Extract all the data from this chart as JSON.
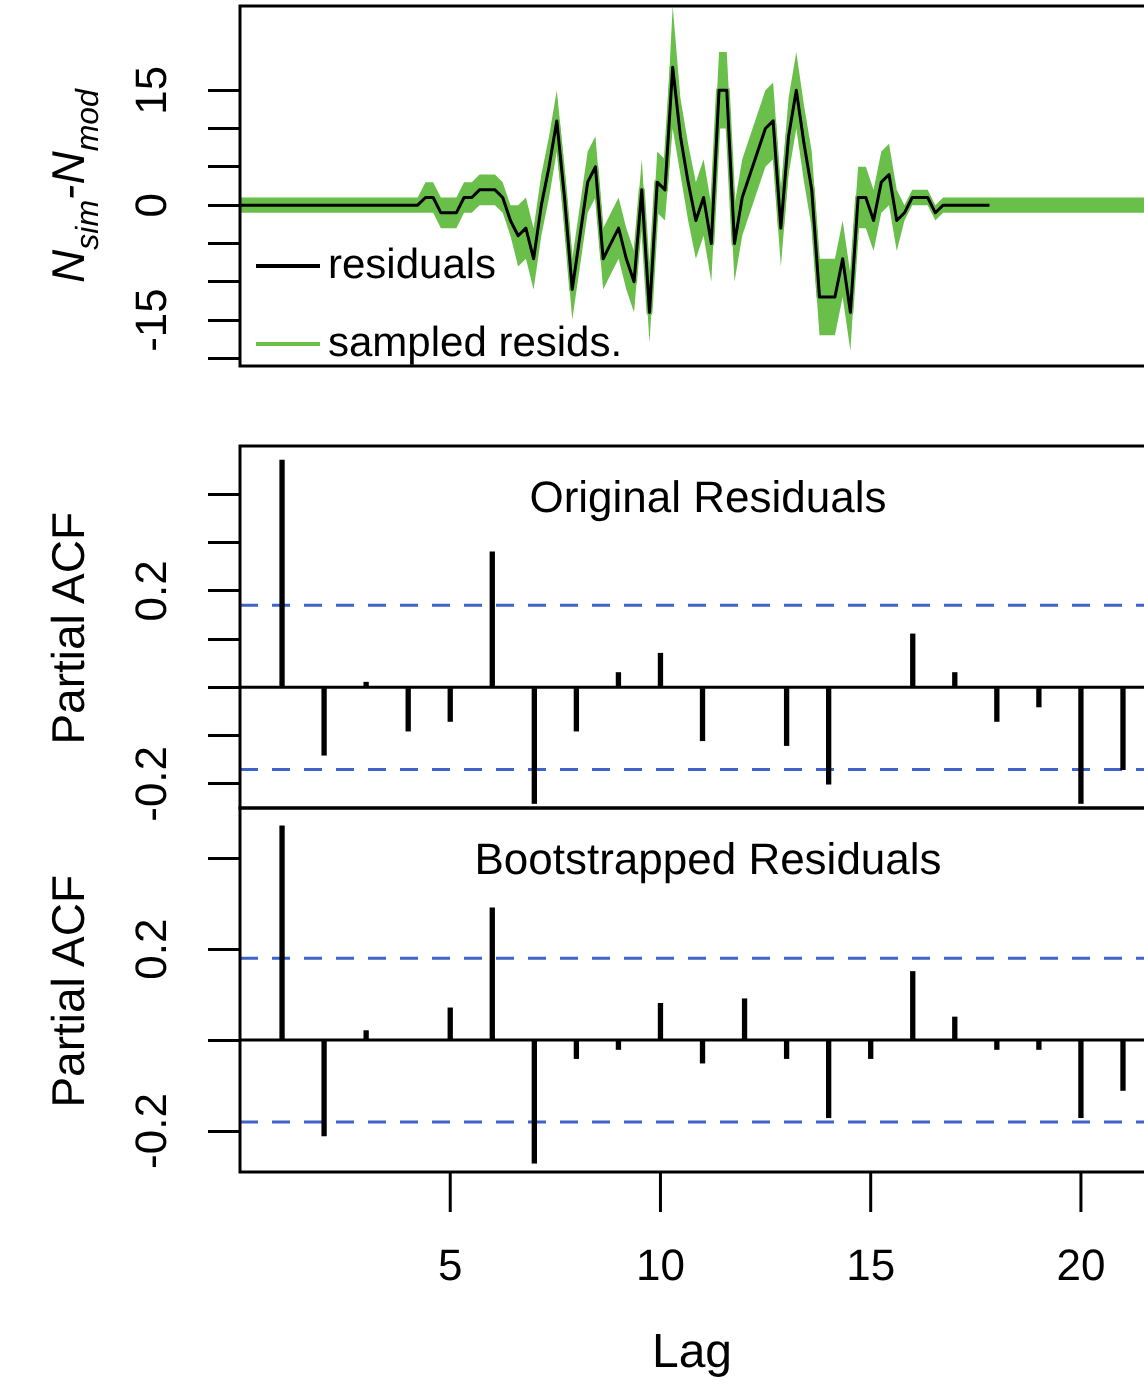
{
  "chart_data": [
    {
      "type": "line",
      "ylabel": "N$_{sim}$-N$_{mod}$",
      "categories": [
        null,
        null,
        null,
        null,
        null,
        null,
        null,
        null,
        null,
        null,
        null,
        null,
        null,
        null,
        null,
        null,
        null,
        null,
        null,
        null,
        null,
        null,
        null,
        null,
        null,
        null,
        null,
        null,
        null,
        null,
        null,
        null,
        null,
        null,
        null,
        null,
        null,
        null,
        null,
        null,
        null,
        null,
        null,
        null,
        null,
        null,
        null,
        null,
        null,
        null,
        null,
        null,
        null,
        null,
        null,
        null,
        null,
        null,
        null,
        null,
        null,
        null,
        null,
        null,
        null,
        null,
        null,
        null,
        null,
        null,
        null,
        null,
        null,
        null,
        null,
        null,
        null,
        null,
        null,
        null,
        null,
        null,
        null,
        null,
        null,
        null,
        null,
        null,
        null,
        null,
        null,
        null,
        null,
        null,
        null,
        null,
        null,
        null,
        null,
        null,
        null,
        null,
        null,
        null,
        null,
        null,
        null,
        null,
        null,
        null,
        null,
        null,
        null,
        null,
        null,
        null,
        null,
        null
      ],
      "series": [
        {
          "name": "residuals",
          "color": "#000000",
          "values": [
            0,
            0,
            0,
            0,
            0,
            0,
            0,
            0,
            0,
            0,
            0,
            0,
            0,
            0,
            0,
            0,
            0,
            0,
            0,
            0,
            0,
            0,
            0,
            0,
            1,
            1,
            -1,
            -1,
            -1,
            1,
            1,
            2,
            2,
            2,
            1,
            -2,
            -4,
            -3,
            -7,
            0,
            5,
            11,
            1,
            -11,
            -4,
            3,
            5,
            -7,
            -5,
            -3,
            -7,
            -10,
            2,
            -14,
            3,
            2,
            18,
            9,
            3,
            -2,
            1,
            -5,
            15,
            15,
            -5,
            1,
            4,
            7,
            10,
            11,
            -3,
            9,
            15,
            8,
            2,
            -12,
            -12,
            -12,
            -7,
            -14,
            1,
            1,
            -2,
            3,
            4,
            -2,
            -1,
            1,
            1,
            1,
            -1,
            0,
            0,
            0,
            0,
            0,
            0,
            0,
            null,
            null,
            null,
            null,
            null,
            null,
            null,
            null,
            null,
            null,
            null,
            null,
            null,
            null,
            null,
            null,
            null,
            null,
            null,
            null
          ]
        },
        {
          "name": "sampled resids.",
          "color": "#6abf4b",
          "values": [
            0,
            0,
            0,
            0,
            0,
            0,
            0,
            0,
            0,
            0,
            0,
            0,
            0,
            0,
            0,
            0,
            0,
            0,
            0,
            0,
            0,
            0,
            0,
            0,
            1,
            1,
            -1,
            -1,
            -1,
            1,
            1,
            2,
            2,
            2,
            1,
            -2,
            -4,
            -3,
            -7,
            0,
            5,
            11,
            1,
            -11,
            -4,
            3,
            5,
            -7,
            -5,
            -3,
            -7,
            -10,
            2,
            -14,
            3,
            2,
            18,
            9,
            3,
            -2,
            1,
            -5,
            15,
            15,
            -5,
            1,
            4,
            7,
            10,
            11,
            -3,
            9,
            15,
            8,
            2,
            -12,
            -12,
            -12,
            -7,
            -14,
            1,
            1,
            -2,
            3,
            4,
            -2,
            -1,
            1,
            1,
            1,
            -1,
            0,
            0,
            0,
            0,
            0,
            0,
            0,
            0,
            0,
            0,
            0,
            0,
            0,
            0,
            0,
            0,
            0,
            0,
            0,
            0,
            0,
            0,
            0,
            0,
            0,
            0,
            0
          ],
          "upper": [
            1,
            1,
            1,
            1,
            1,
            1,
            1,
            1,
            1,
            1,
            1,
            1,
            1,
            1,
            1,
            1,
            1,
            1,
            1,
            1,
            1,
            1,
            1,
            1,
            3,
            3,
            1,
            1,
            1,
            3,
            3,
            4,
            4,
            4,
            3,
            0,
            0,
            1,
            -3,
            4,
            9,
            15,
            5,
            -7,
            0,
            7,
            9,
            -3,
            -1,
            1,
            -3,
            -6,
            6,
            -10,
            7,
            6,
            26,
            14,
            8,
            3,
            6,
            0,
            20,
            20,
            0,
            6,
            9,
            12,
            15,
            16,
            2,
            14,
            20,
            13,
            7,
            -7,
            -7,
            -7,
            -2,
            -9,
            5,
            5,
            2,
            7,
            8,
            2,
            0,
            2,
            2,
            2,
            0,
            1,
            1,
            1,
            1,
            1,
            1,
            1,
            1,
            1,
            1,
            1,
            1,
            1,
            1,
            1,
            1,
            1,
            1,
            1,
            1,
            1,
            1,
            1,
            1,
            1,
            1,
            1
          ],
          "lower": [
            -1,
            -1,
            -1,
            -1,
            -1,
            -1,
            -1,
            -1,
            -1,
            -1,
            -1,
            -1,
            -1,
            -1,
            -1,
            -1,
            -1,
            -1,
            -1,
            -1,
            -1,
            -1,
            -1,
            -1,
            -1,
            -1,
            -3,
            -3,
            -3,
            -1,
            -1,
            0,
            0,
            0,
            -1,
            -4,
            -8,
            -7,
            -11,
            -4,
            1,
            7,
            -3,
            -15,
            -8,
            -1,
            1,
            -11,
            -9,
            -7,
            -11,
            -14,
            -2,
            -18,
            -1,
            -2,
            10,
            4,
            -2,
            -7,
            -4,
            -10,
            10,
            10,
            -10,
            -4,
            -1,
            2,
            5,
            6,
            -8,
            4,
            10,
            3,
            -3,
            -17,
            -17,
            -17,
            -12,
            -19,
            -3,
            -3,
            -6,
            -1,
            0,
            -6,
            -2,
            0,
            0,
            0,
            -2,
            -1,
            -1,
            -1,
            -1,
            -1,
            -1,
            -1,
            -1,
            -1,
            -1,
            -1,
            -1,
            -1,
            -1,
            -1,
            -1,
            -1,
            -1,
            -1,
            -1,
            -1,
            -1,
            -1,
            -1,
            -1,
            -1,
            -1
          ]
        }
      ],
      "ylim": [
        -21,
        26
      ],
      "yticks": [
        {
          "value": -20,
          "label": null
        },
        -15,
        {
          "value": -10,
          "label": null
        },
        {
          "value": -5,
          "label": null
        },
        0,
        {
          "value": 5,
          "label": null
        },
        {
          "value": 10,
          "label": null
        },
        15
      ],
      "legend": "bottom left",
      "tick_labels": "y"
    },
    {
      "type": "bar",
      "title": "Original Residuals",
      "ylabel": "Partial ACF",
      "x": [
        1,
        2,
        3,
        4,
        5,
        6,
        7,
        8,
        9,
        10,
        11,
        12,
        13,
        14,
        15,
        16,
        17,
        18,
        19,
        20,
        21
      ],
      "values": [
        0.47,
        -0.14,
        0.01,
        -0.09,
        -0.07,
        0.28,
        -0.24,
        -0.09,
        0.03,
        0.07,
        -0.11,
        0,
        -0.12,
        -0.2,
        0,
        0.11,
        0.03,
        -0.07,
        -0.04,
        -0.24,
        -0.17
      ],
      "color": "#000000",
      "xlim": [
        0,
        21.5
      ],
      "ylim": [
        -0.25,
        0.5
      ],
      "yticks": [
        -0.2,
        {
          "value": -0.1,
          "label": null
        },
        {
          "value": 0,
          "label": null
        },
        {
          "value": 0.1,
          "label": null
        },
        0.2,
        {
          "value": 0.3,
          "label": null
        },
        {
          "value": 0.4,
          "label": null
        }
      ],
      "ref_lines": [
        {
          "axis": "y",
          "value": 0,
          "color": "#000000"
        },
        {
          "axis": "y",
          "value": 0.17,
          "color": "#3f63c9",
          "line_style": "dashed"
        },
        {
          "axis": "y",
          "value": -0.17,
          "color": "#3f63c9",
          "line_style": "dashed"
        }
      ],
      "tick_labels": "y"
    },
    {
      "type": "bar",
      "title": "Bootstrapped Residuals",
      "ylabel": "Partial ACF",
      "xlabel": "Lag",
      "x": [
        1,
        2,
        3,
        4,
        5,
        6,
        7,
        8,
        9,
        10,
        11,
        12,
        13,
        14,
        15,
        16,
        17,
        18,
        19,
        20,
        21
      ],
      "values": [
        0.47,
        -0.21,
        0.02,
        0,
        0.07,
        0.29,
        -0.27,
        -0.04,
        -0.02,
        0.08,
        -0.05,
        0.09,
        -0.04,
        -0.17,
        -0.04,
        0.15,
        0.05,
        -0.02,
        -0.02,
        -0.17,
        -0.11
      ],
      "color": "#000000",
      "xlim": [
        0,
        21.5
      ],
      "xticks": [
        5,
        10,
        15,
        20
      ],
      "ylim": [
        -0.29,
        0.51
      ],
      "yticks": [
        -0.2,
        {
          "value": 0,
          "label": null
        },
        0.2,
        {
          "value": 0.4,
          "label": null
        }
      ],
      "ref_lines": [
        {
          "axis": "y",
          "value": 0,
          "color": "#000000"
        },
        {
          "axis": "y",
          "value": 0.18,
          "color": "#3f63c9",
          "line_style": "dashed"
        },
        {
          "axis": "y",
          "value": -0.18,
          "color": "#3f63c9",
          "line_style": "dashed"
        }
      ]
    }
  ]
}
